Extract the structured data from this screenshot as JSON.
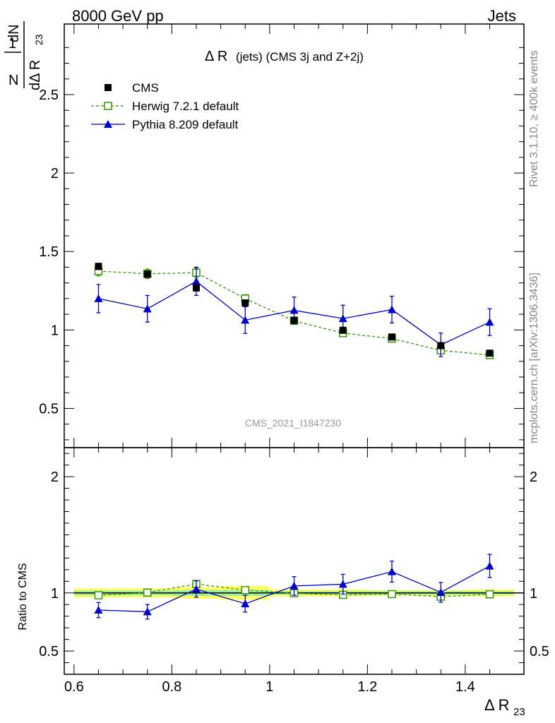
{
  "header": {
    "left": "8000 GeV pp",
    "right": "Jets"
  },
  "side_labels": {
    "rivet": "Rivet 3.1.10, ≥ 400k events",
    "mcplots": "mcplots.cern.ch [arXiv:1306.3436]"
  },
  "watermark": "CMS_2021_I1847230",
  "chart_data": [
    {
      "type": "scatter",
      "title": "Δ R (jets) (CMS 3j and Z+2j)",
      "ylabel": "1/N dN/dΔ R23",
      "xlim": [
        0.58,
        1.52
      ],
      "ylim": [
        0.25,
        2.95
      ],
      "y_ticks": [
        "0.5",
        "1",
        "1.5",
        "2",
        "2.5"
      ],
      "legend_position": "top-left",
      "x": [
        0.65,
        0.75,
        0.85,
        0.95,
        1.05,
        1.15,
        1.25,
        1.35,
        1.45
      ],
      "series": [
        {
          "name": "CMS",
          "color": "#000000",
          "marker": "filled-square",
          "values": [
            1.405,
            1.355,
            1.268,
            1.172,
            1.062,
            0.998,
            0.955,
            0.9,
            0.852
          ],
          "errors": [
            0.02,
            0.02,
            0.02,
            0.02,
            0.015,
            0.015,
            0.015,
            0.015,
            0.015
          ]
        },
        {
          "name": "Herwig 7.2.1 default",
          "color": "#339900",
          "marker": "open-square",
          "line": "dashed",
          "values": [
            1.375,
            1.358,
            1.365,
            1.2,
            1.058,
            0.98,
            0.945,
            0.87,
            0.84
          ],
          "errors": [
            0.03,
            0.03,
            0.03,
            0.025,
            0.02,
            0.02,
            0.02,
            0.02,
            0.02
          ]
        },
        {
          "name": "Pythia 8.209 default",
          "color": "#0000cc",
          "marker": "filled-triangle",
          "line": "solid",
          "values": [
            1.2,
            1.135,
            1.31,
            1.063,
            1.125,
            1.073,
            1.13,
            0.905,
            1.05
          ],
          "errors": [
            0.09,
            0.085,
            0.09,
            0.085,
            0.085,
            0.085,
            0.085,
            0.075,
            0.085
          ]
        }
      ]
    },
    {
      "type": "scatter",
      "title": "",
      "ylabel": "Ratio to CMS",
      "xlabel": "Δ R23",
      "xlim": [
        0.58,
        1.52
      ],
      "ylim": [
        0.3,
        2.25
      ],
      "y_ticks": [
        "0.5",
        "1",
        "2"
      ],
      "x_ticks": [
        "0.6",
        "0.8",
        "1",
        "1.2",
        "1.4"
      ],
      "x": [
        0.65,
        0.75,
        0.85,
        0.95,
        1.05,
        1.15,
        1.25,
        1.35,
        1.45
      ],
      "band": {
        "color_outer": "#ffff66",
        "color_inner": "#99ee99",
        "outer": [
          0.04,
          0.04,
          0.05,
          0.06,
          0.03,
          0.03,
          0.025,
          0.025,
          0.03
        ],
        "inner": [
          0.02,
          0.02,
          0.025,
          0.025,
          0.015,
          0.015,
          0.015,
          0.015,
          0.015
        ]
      },
      "series": [
        {
          "name": "Herwig 7.2.1 default",
          "color": "#339900",
          "marker": "open-square",
          "line": "dashed",
          "values": [
            0.98,
            1.003,
            1.077,
            1.024,
            0.998,
            0.983,
            0.99,
            0.968,
            0.988
          ]
        },
        {
          "name": "Pythia 8.209 default",
          "color": "#0000cc",
          "marker": "filled-triangle",
          "line": "solid",
          "values": [
            0.853,
            0.838,
            1.033,
            0.907,
            1.06,
            1.075,
            1.183,
            1.005,
            1.232
          ],
          "errors": [
            0.065,
            0.063,
            0.07,
            0.072,
            0.08,
            0.085,
            0.09,
            0.085,
            0.1
          ]
        }
      ]
    }
  ]
}
